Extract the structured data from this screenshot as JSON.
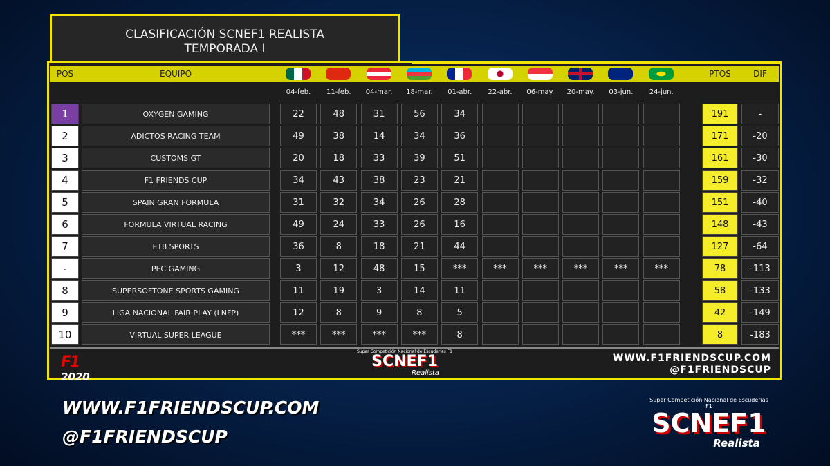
{
  "header": {
    "title_lines": [
      "CLASIFICACIÓN SCNEF1 REALISTA",
      "TEMPORADA I"
    ]
  },
  "table": {
    "columns": {
      "pos": "POS",
      "team": "EQUIPO",
      "points": "PTOS",
      "dif": "DIF"
    },
    "races": [
      "04-feb.",
      "11-feb.",
      "04-mar.",
      "18-mar.",
      "01-abr.",
      "22-abr.",
      "06-may.",
      "20-may.",
      "03-jun.",
      "24-jun."
    ],
    "rows": [
      {
        "pos": 1,
        "team": "OXYGEN GAMING",
        "results": [
          22,
          48,
          31,
          56,
          34,
          null,
          null,
          null,
          null,
          null
        ],
        "points": 191,
        "dif": "-"
      },
      {
        "pos": 2,
        "team": "ADICTOS RACING TEAM",
        "results": [
          49,
          38,
          14,
          34,
          36,
          null,
          null,
          null,
          null,
          null
        ],
        "points": 171,
        "dif": -20
      },
      {
        "pos": 3,
        "team": "CUSTOMS GT",
        "results": [
          20,
          18,
          33,
          39,
          51,
          null,
          null,
          null,
          null,
          null
        ],
        "points": 161,
        "dif": -30
      },
      {
        "pos": 4,
        "team": "F1 FRIENDS CUP",
        "results": [
          34,
          43,
          38,
          23,
          21,
          null,
          null,
          null,
          null,
          null
        ],
        "points": 159,
        "dif": -32
      },
      {
        "pos": 5,
        "team": "SPAIN GRAN FORMULA",
        "results": [
          31,
          32,
          34,
          26,
          28,
          null,
          null,
          null,
          null,
          null
        ],
        "points": 151,
        "dif": -40
      },
      {
        "pos": 6,
        "team": "FORMULA VIRTUAL RACING",
        "results": [
          49,
          24,
          33,
          26,
          16,
          null,
          null,
          null,
          null,
          null
        ],
        "points": 148,
        "dif": -43
      },
      {
        "pos": 7,
        "team": "ET8 SPORTS",
        "results": [
          36,
          8,
          18,
          21,
          44,
          null,
          null,
          null,
          null,
          null
        ],
        "points": 127,
        "dif": -64
      },
      {
        "pos": "-",
        "team": "PEC GAMING",
        "results": [
          3,
          12,
          48,
          15,
          "***",
          "***",
          "***",
          "***",
          "***",
          "***"
        ],
        "points": 78,
        "dif": -113
      },
      {
        "pos": 8,
        "team": "SUPERSOFTONE SPORTS GAMING",
        "results": [
          11,
          19,
          3,
          14,
          11,
          null,
          null,
          null,
          null,
          null
        ],
        "points": 58,
        "dif": -133
      },
      {
        "pos": 9,
        "team": "LIGA NACIONAL FAIR PLAY (LNFP)",
        "results": [
          12,
          8,
          9,
          8,
          5,
          null,
          null,
          null,
          null,
          null
        ],
        "points": 42,
        "dif": -149
      },
      {
        "pos": 10,
        "team": "VIRTUAL SUPER LEAGUE",
        "results": [
          "***",
          "***",
          "***",
          "***",
          8,
          null,
          null,
          null,
          null,
          null
        ],
        "points": 8,
        "dif": -183
      }
    ]
  },
  "footer": {
    "f1_year": "2020",
    "logo": {
      "top": "Super Competición Nacional de Escuderías F1",
      "name": "SCNEF1",
      "sub": "Realista"
    },
    "website": "WWW.F1FRIENDSCUP.COM",
    "handle": "@F1FRIENDSCUP"
  },
  "banner": {
    "website": "WWW.F1FRIENDSCUP.COM",
    "handle": "@F1FRIENDSCUP",
    "logo": {
      "top": "Super Competición Nacional de Escuderías F1",
      "name": "SCNEF1",
      "sub": "Realista"
    }
  }
}
